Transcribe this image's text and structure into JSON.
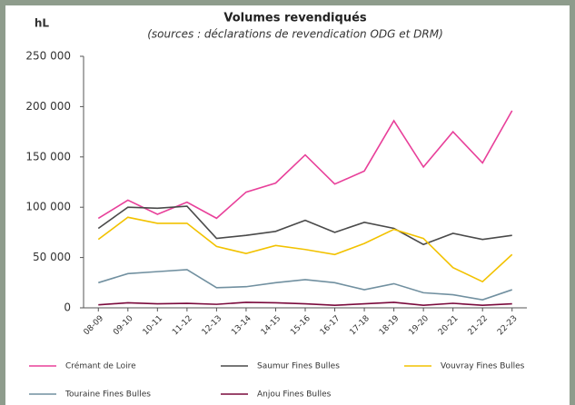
{
  "chart_data": {
    "type": "line",
    "title": "Volumes revendiqués",
    "subtitle": "(sources : déclarations de revendication ODG et DRM)",
    "y_axis_label": "hL",
    "categories": [
      "08-09",
      "09-10",
      "10-11",
      "11-12",
      "12-13",
      "13-14",
      "14-15",
      "15-16",
      "16-17",
      "17-18",
      "18-19",
      "19-20",
      "20-21",
      "21-22",
      "22-23"
    ],
    "series": [
      {
        "name": "Crémant de Loire",
        "color": "#e8409a",
        "values": [
          89000,
          107000,
          93000,
          105000,
          89000,
          115000,
          124000,
          152000,
          123000,
          136000,
          186000,
          140000,
          175000,
          144000,
          196000
        ]
      },
      {
        "name": "Saumur Fines Bulles",
        "color": "#4a4a4a",
        "values": [
          79000,
          100000,
          99000,
          101000,
          69000,
          72000,
          76000,
          87000,
          75000,
          85000,
          79000,
          63000,
          74000,
          68000,
          72000
        ]
      },
      {
        "name": "Vouvray Fines Bulles",
        "color": "#f2c200",
        "values": [
          68000,
          90000,
          84000,
          84000,
          61000,
          54000,
          62000,
          58000,
          53000,
          64000,
          78000,
          69000,
          40000,
          26000,
          53000
        ]
      },
      {
        "name": "Touraine Fines Bulles",
        "color": "#7190a0",
        "values": [
          25000,
          34000,
          36000,
          38000,
          20000,
          21000,
          25000,
          28000,
          25000,
          18000,
          24000,
          15000,
          13000,
          8000,
          18000
        ]
      },
      {
        "name": "Anjou Fines Bulles",
        "color": "#7a0a3c",
        "values": [
          3000,
          5000,
          4000,
          4500,
          3500,
          5500,
          5000,
          4000,
          2500,
          4000,
          5500,
          2500,
          4500,
          2500,
          4000
        ]
      }
    ],
    "ylim": [
      0,
      250000
    ],
    "yticks": [
      0,
      {
        "value": 50000,
        "label": "50 000"
      },
      {
        "value": 100000,
        "label": "100 000"
      },
      {
        "value": 150000,
        "label": "150 000"
      },
      {
        "value": 200000,
        "label": "200 000"
      },
      {
        "value": 250000,
        "label": "250 000"
      }
    ],
    "grid": false,
    "legend": "bottom"
  }
}
